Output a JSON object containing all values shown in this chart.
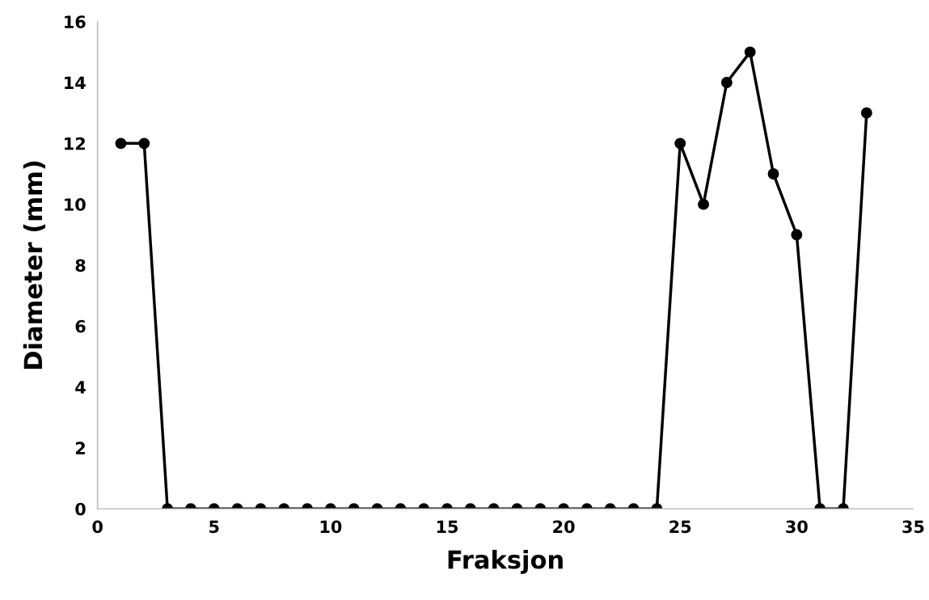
{
  "chart_data": {
    "type": "line",
    "xlabel": "Fraksjon",
    "ylabel": "Diameter (mm)",
    "x": [
      1,
      2,
      3,
      4,
      5,
      6,
      7,
      8,
      9,
      10,
      11,
      12,
      13,
      14,
      15,
      16,
      17,
      18,
      19,
      20,
      21,
      22,
      23,
      24,
      25,
      26,
      27,
      28,
      29,
      30,
      31,
      32,
      33
    ],
    "series": [
      {
        "color": "#000000",
        "values": [
          12,
          12,
          0,
          0,
          0,
          0,
          0,
          0,
          0,
          0,
          0,
          0,
          0,
          0,
          0,
          0,
          0,
          0,
          0,
          0,
          0,
          0,
          0,
          0,
          12,
          10,
          14,
          15,
          11,
          9,
          0,
          0,
          13
        ]
      }
    ],
    "xlim": [
      0,
      35
    ],
    "xticks": [
      0,
      5,
      10,
      15,
      20,
      25,
      30,
      35
    ],
    "ylim": [
      0,
      16
    ],
    "yticks": [
      0,
      2,
      4,
      6,
      8,
      10,
      12,
      14,
      16
    ],
    "grid": false,
    "legend": false,
    "marker": "circle",
    "line_style": "solid"
  }
}
